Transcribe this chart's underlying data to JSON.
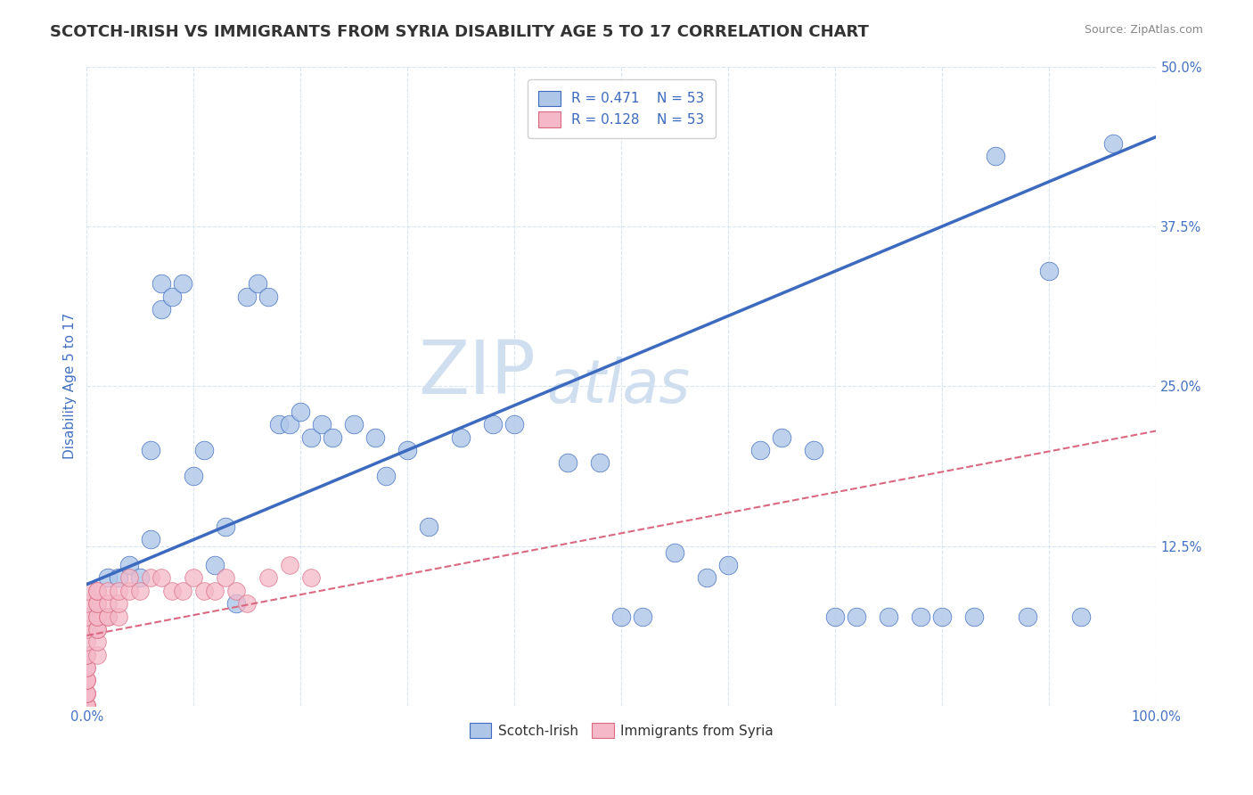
{
  "title": "SCOTCH-IRISH VS IMMIGRANTS FROM SYRIA DISABILITY AGE 5 TO 17 CORRELATION CHART",
  "source_text": "Source: ZipAtlas.com",
  "ylabel": "Disability Age 5 to 17",
  "xlim": [
    0.0,
    1.0
  ],
  "ylim": [
    0.0,
    0.5
  ],
  "legend_blue_label": "Scotch-Irish",
  "legend_pink_label": "Immigrants from Syria",
  "r_blue": "0.471",
  "n_blue": "53",
  "r_pink": "0.128",
  "n_pink": "53",
  "blue_color": "#aec6e8",
  "pink_color": "#f4b8c8",
  "blue_line_color": "#3c6abf",
  "pink_line_color": "#d96880",
  "title_color": "#333333",
  "axis_label_color": "#4472c4",
  "tick_label_color": "#4472c4",
  "watermark_color": "#d0dff0",
  "background_color": "#ffffff",
  "blue_scatter_x": [
    0.02,
    0.03,
    0.04,
    0.05,
    0.06,
    0.06,
    0.07,
    0.07,
    0.08,
    0.09,
    0.1,
    0.11,
    0.12,
    0.13,
    0.14,
    0.15,
    0.16,
    0.17,
    0.18,
    0.19,
    0.2,
    0.21,
    0.22,
    0.23,
    0.25,
    0.27,
    0.28,
    0.3,
    0.32,
    0.35,
    0.38,
    0.4,
    0.45,
    0.48,
    0.5,
    0.52,
    0.55,
    0.58,
    0.6,
    0.63,
    0.65,
    0.68,
    0.7,
    0.72,
    0.75,
    0.78,
    0.8,
    0.83,
    0.85,
    0.88,
    0.9,
    0.93,
    0.96
  ],
  "blue_scatter_y": [
    0.1,
    0.1,
    0.11,
    0.1,
    0.2,
    0.13,
    0.31,
    0.33,
    0.32,
    0.33,
    0.18,
    0.2,
    0.11,
    0.14,
    0.08,
    0.32,
    0.33,
    0.32,
    0.22,
    0.22,
    0.23,
    0.21,
    0.22,
    0.21,
    0.22,
    0.21,
    0.18,
    0.2,
    0.14,
    0.21,
    0.22,
    0.22,
    0.19,
    0.19,
    0.07,
    0.07,
    0.12,
    0.1,
    0.11,
    0.2,
    0.21,
    0.2,
    0.07,
    0.07,
    0.07,
    0.07,
    0.07,
    0.07,
    0.43,
    0.07,
    0.34,
    0.07,
    0.44
  ],
  "pink_scatter_x": [
    0.0,
    0.0,
    0.0,
    0.0,
    0.0,
    0.0,
    0.0,
    0.0,
    0.0,
    0.0,
    0.0,
    0.0,
    0.0,
    0.0,
    0.0,
    0.0,
    0.0,
    0.0,
    0.0,
    0.0,
    0.01,
    0.01,
    0.01,
    0.01,
    0.01,
    0.01,
    0.01,
    0.01,
    0.01,
    0.01,
    0.02,
    0.02,
    0.02,
    0.02,
    0.03,
    0.03,
    0.03,
    0.04,
    0.04,
    0.05,
    0.06,
    0.07,
    0.08,
    0.09,
    0.1,
    0.11,
    0.12,
    0.13,
    0.14,
    0.15,
    0.17,
    0.19,
    0.21
  ],
  "pink_scatter_y": [
    0.0,
    0.0,
    0.0,
    0.0,
    0.0,
    0.01,
    0.01,
    0.01,
    0.02,
    0.02,
    0.02,
    0.03,
    0.03,
    0.04,
    0.04,
    0.05,
    0.06,
    0.07,
    0.08,
    0.09,
    0.04,
    0.05,
    0.06,
    0.06,
    0.07,
    0.07,
    0.08,
    0.08,
    0.09,
    0.09,
    0.07,
    0.07,
    0.08,
    0.09,
    0.07,
    0.08,
    0.09,
    0.09,
    0.1,
    0.09,
    0.1,
    0.1,
    0.09,
    0.09,
    0.1,
    0.09,
    0.09,
    0.1,
    0.09,
    0.08,
    0.1,
    0.11,
    0.1
  ],
  "blue_trend_x0": 0.0,
  "blue_trend_y0": 0.095,
  "blue_trend_x1": 1.0,
  "blue_trend_y1": 0.445,
  "pink_trend_x0": 0.0,
  "pink_trend_y0": 0.055,
  "pink_trend_x1": 1.0,
  "pink_trend_y1": 0.215,
  "grid_color": "#d8e4f0",
  "title_fontsize": 13,
  "label_fontsize": 11,
  "tick_fontsize": 10.5,
  "legend_fontsize": 11
}
